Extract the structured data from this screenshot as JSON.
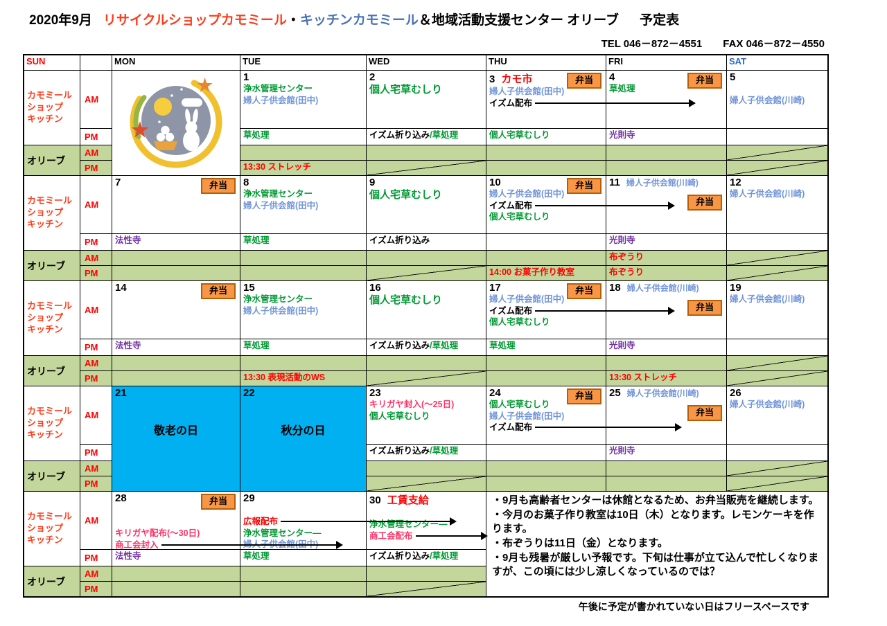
{
  "title": {
    "year_month": "2020年9月",
    "shop": "リサイクルショップカモミール",
    "dot": "・",
    "kitchen": "キッチンカモミール",
    "rest": "＆地域活動支援センター オリーブ",
    "suffix": "予定表"
  },
  "contact": "TEL 046－872－4551　　FAX 046－872－4550",
  "weekday_header": [
    "SUN",
    "",
    "MON",
    "TUE",
    "WED",
    "THU",
    "FRI",
    "SAT"
  ],
  "row_labels": {
    "shop": [
      "カモミール",
      "ショップ",
      "キッチン"
    ],
    "olive": "オリーブ",
    "am": "AM",
    "pm": "PM"
  },
  "bento_label": "弁当",
  "footnote": "午後に予定が書かれていない日はフリースペースです",
  "notes": [
    "・9月も高齢者センターは休館となるため、お弁当販売を継続します。",
    "・今月のお菓子作り教室は10日（木）となります。レモンケーキを作ります。",
    "・布ぞうりは11日（金）となります。",
    "・9月も残暑が厳しい予報です。下旬は仕事が立て込んで忙しくなりますが、この頃には少し涼しくなっているのでは？"
  ],
  "colors": {
    "event_red": "#ff0000",
    "event_green": "#009933",
    "event_blue": "#7094d9",
    "event_purple": "#7030a0",
    "event_pink": "#ff3366",
    "olive_row_bg": "#c3d69b",
    "holiday_blue": "#00b0f0",
    "bento_orange": "#f79646",
    "bento_border": "#b45f06",
    "shop_label_red": "#ff3c1a",
    "kitchen_title_blue": "#4a72b8",
    "sat_header_blue": "#2b6bc4"
  },
  "weeks": [
    {
      "days": [
        {
          "type": "image"
        },
        {
          "type": "day",
          "day": "1",
          "am": [
            {
              "segs": [
                {
                  "t": "浄水管理センター",
                  "c": "green"
                }
              ]
            },
            {
              "segs": [
                {
                  "t": "婦人子供会館(田中)",
                  "c": "blue"
                }
              ]
            }
          ],
          "pm": [
            {
              "segs": [
                {
                  "t": "草処理",
                  "c": "green"
                }
              ]
            }
          ],
          "opm": [
            {
              "segs": [
                {
                  "t": "13:30 ストレッチ",
                  "c": "red"
                }
              ]
            }
          ]
        },
        {
          "type": "day",
          "day": "2",
          "am": [
            {
              "big": true,
              "segs": [
                {
                  "t": "個人宅草むしり",
                  "c": "green"
                }
              ]
            }
          ],
          "pm": [
            {
              "segs": [
                {
                  "t": "イズム折り込み",
                  "c": "black"
                },
                {
                  "t": "/草処理",
                  "c": "green"
                }
              ]
            }
          ],
          "slash_opm": true
        },
        {
          "type": "day",
          "day": "3",
          "label": {
            "t": "カモ市",
            "c": "red"
          },
          "bento": true,
          "am": [
            {
              "segs": [
                {
                  "t": "婦人子供会館(田中)",
                  "c": "blue"
                }
              ]
            },
            {
              "segs": [
                {
                  "t": "イズム配布",
                  "c": "black"
                }
              ],
              "arrow": 230
            }
          ],
          "pm": [
            {
              "segs": [
                {
                  "t": "個人宅草むしり",
                  "c": "green"
                }
              ]
            }
          ]
        },
        {
          "type": "day",
          "day": "4",
          "bento": true,
          "am": [
            {
              "segs": [
                {
                  "t": "草処理",
                  "c": "green"
                }
              ]
            }
          ],
          "pm": [
            {
              "segs": [
                {
                  "t": "光則寺",
                  "c": "purple"
                }
              ]
            }
          ]
        },
        {
          "type": "day",
          "day": "5",
          "am": [
            {
              "gap": true
            },
            {
              "segs": [
                {
                  "t": "婦人子供会館(川崎)",
                  "c": "blue"
                }
              ]
            }
          ],
          "slash_oam": true,
          "slash_opm": true
        }
      ]
    },
    {
      "days": [
        {
          "type": "day",
          "day": "7",
          "bento": true,
          "pm": [
            {
              "segs": [
                {
                  "t": "法性寺",
                  "c": "purple"
                }
              ]
            }
          ]
        },
        {
          "type": "day",
          "day": "8",
          "am": [
            {
              "segs": [
                {
                  "t": "浄水管理センター",
                  "c": "green"
                }
              ]
            },
            {
              "segs": [
                {
                  "t": "婦人子供会館(田中)",
                  "c": "blue"
                }
              ]
            }
          ],
          "pm": [
            {
              "segs": [
                {
                  "t": "草処理",
                  "c": "green"
                }
              ]
            }
          ]
        },
        {
          "type": "day",
          "day": "9",
          "am": [
            {
              "big": true,
              "segs": [
                {
                  "t": "個人宅草むしり",
                  "c": "green"
                }
              ]
            }
          ],
          "pm": [
            {
              "segs": [
                {
                  "t": "イズム折り込み",
                  "c": "black"
                }
              ]
            }
          ],
          "slash_opm": true
        },
        {
          "type": "day",
          "day": "10",
          "bento": true,
          "am": [
            {
              "segs": [
                {
                  "t": "婦人子供会館(田中)",
                  "c": "blue"
                }
              ]
            },
            {
              "segs": [
                {
                  "t": "イズム配布",
                  "c": "black"
                }
              ],
              "arrow": 200
            },
            {
              "segs": [
                {
                  "t": "個人宅草むしり",
                  "c": "green"
                }
              ]
            }
          ],
          "opm": [
            {
              "segs": [
                {
                  "t": "14:00 お菓子作り教室",
                  "c": "red"
                }
              ]
            }
          ]
        },
        {
          "type": "day",
          "day": "11",
          "side": {
            "t": "婦人子供会館(川崎)",
            "c": "blue"
          },
          "bento": true,
          "bento_low": true,
          "pm": [
            {
              "segs": [
                {
                  "t": "光則寺",
                  "c": "purple"
                }
              ]
            }
          ],
          "oam": [
            {
              "segs": [
                {
                  "t": "布ぞうり",
                  "c": "red"
                }
              ]
            }
          ],
          "opm": [
            {
              "segs": [
                {
                  "t": "布ぞうり",
                  "c": "red"
                }
              ]
            }
          ]
        },
        {
          "type": "day",
          "day": "12",
          "am": [
            {
              "segs": [
                {
                  "t": "婦人子供会館(川崎)",
                  "c": "blue"
                }
              ]
            }
          ],
          "slash_oam": true,
          "slash_opm": true
        }
      ]
    },
    {
      "days": [
        {
          "type": "day",
          "day": "14",
          "bento": true,
          "pm": [
            {
              "segs": [
                {
                  "t": "法性寺",
                  "c": "purple"
                }
              ]
            }
          ]
        },
        {
          "type": "day",
          "day": "15",
          "am": [
            {
              "segs": [
                {
                  "t": "浄水管理センター",
                  "c": "green"
                }
              ]
            },
            {
              "segs": [
                {
                  "t": "婦人子供会館(田中)",
                  "c": "blue"
                }
              ]
            }
          ],
          "pm": [
            {
              "segs": [
                {
                  "t": "草処理",
                  "c": "green"
                }
              ]
            }
          ],
          "opm": [
            {
              "segs": [
                {
                  "t": "13:30 表現活動のWS",
                  "c": "red"
                }
              ]
            }
          ]
        },
        {
          "type": "day",
          "day": "16",
          "am": [
            {
              "big": true,
              "segs": [
                {
                  "t": "個人宅草むしり",
                  "c": "green"
                }
              ]
            }
          ],
          "pm": [
            {
              "segs": [
                {
                  "t": "イズム折り込み",
                  "c": "black"
                },
                {
                  "t": "/草処理",
                  "c": "green"
                }
              ]
            }
          ],
          "slash_opm": true
        },
        {
          "type": "day",
          "day": "17",
          "bento": true,
          "am": [
            {
              "segs": [
                {
                  "t": "婦人子供会館(田中)",
                  "c": "blue"
                }
              ]
            },
            {
              "segs": [
                {
                  "t": "イズム配布",
                  "c": "black"
                }
              ],
              "arrow": 200
            },
            {
              "segs": [
                {
                  "t": "個人宅草むしり",
                  "c": "green"
                }
              ]
            }
          ],
          "pm": [
            {
              "segs": [
                {
                  "t": "草処理",
                  "c": "green"
                }
              ]
            }
          ]
        },
        {
          "type": "day",
          "day": "18",
          "side": {
            "t": "婦人子供会館(川崎)",
            "c": "blue"
          },
          "bento": true,
          "bento_low": true,
          "pm": [
            {
              "segs": [
                {
                  "t": "光則寺",
                  "c": "purple"
                }
              ]
            }
          ],
          "opm": [
            {
              "segs": [
                {
                  "t": "13:30 ストレッチ",
                  "c": "red"
                }
              ]
            }
          ]
        },
        {
          "type": "day",
          "day": "19",
          "am": [
            {
              "segs": [
                {
                  "t": "婦人子供会館(川崎)",
                  "c": "blue"
                }
              ]
            }
          ],
          "slash_oam": true,
          "slash_opm": true
        }
      ]
    },
    {
      "days": [
        {
          "type": "holiday",
          "day": "21",
          "name": "敬老の日"
        },
        {
          "type": "holiday",
          "day": "22",
          "name": "秋分の日"
        },
        {
          "type": "day",
          "day": "23",
          "am": [
            {
              "segs": [
                {
                  "t": "キリガヤ封入(～25日)",
                  "c": "pink"
                }
              ]
            },
            {
              "segs": [
                {
                  "t": "個人宅草むしり",
                  "c": "green"
                }
              ]
            }
          ],
          "pm": [
            {
              "segs": [
                {
                  "t": "イズム折り込み",
                  "c": "black"
                },
                {
                  "t": "/草処理",
                  "c": "green"
                }
              ]
            }
          ],
          "slash_opm": true
        },
        {
          "type": "day",
          "day": "24",
          "bento": true,
          "am": [
            {
              "segs": [
                {
                  "t": "個人宅草むしり",
                  "c": "green"
                }
              ]
            },
            {
              "segs": [
                {
                  "t": "婦人子供会館(田中)",
                  "c": "blue"
                }
              ]
            },
            {
              "segs": [
                {
                  "t": "イズム配布",
                  "c": "black"
                }
              ],
              "arrow": 210
            }
          ]
        },
        {
          "type": "day",
          "day": "25",
          "side": {
            "t": "婦人子供会館(川崎)",
            "c": "blue"
          },
          "bento": true,
          "bento_low": true,
          "pm": [
            {
              "segs": [
                {
                  "t": "光則寺",
                  "c": "purple"
                }
              ]
            }
          ]
        },
        {
          "type": "day",
          "day": "26",
          "am": [
            {
              "segs": [
                {
                  "t": "婦人子供会館(川崎)",
                  "c": "blue"
                }
              ]
            }
          ],
          "slash_oam": true,
          "slash_opm": true
        }
      ]
    },
    {
      "days": [
        {
          "type": "day",
          "day": "28",
          "bento": true,
          "am": [
            {
              "gap": true
            },
            {
              "gap": true
            },
            {
              "segs": [
                {
                  "t": "キリガヤ配布(～30日)",
                  "c": "pink"
                }
              ]
            },
            {
              "segs": [
                {
                  "t": "商工会封入",
                  "c": "pink"
                }
              ],
              "arrow": 260
            }
          ],
          "pm": [
            {
              "segs": [
                {
                  "t": "法性寺",
                  "c": "purple"
                }
              ]
            }
          ]
        },
        {
          "type": "day",
          "day": "29",
          "am": [
            {
              "gap": true
            },
            {
              "segs": [
                {
                  "t": "広報配布",
                  "c": "red"
                }
              ],
              "arrow": 252
            },
            {
              "segs": [
                {
                  "t": "浄水管理センター―",
                  "c": "green"
                }
              ]
            },
            {
              "segs": [
                {
                  "t": "婦人子供会館(田中)",
                  "c": "blue"
                }
              ]
            }
          ],
          "pm": [
            {
              "segs": [
                {
                  "t": "草処理",
                  "c": "green"
                }
              ]
            }
          ]
        },
        {
          "type": "day",
          "day": "30",
          "label": {
            "t": "工賃支給",
            "c": "red"
          },
          "am": [
            {
              "gap": true
            },
            {
              "segs": [
                {
                  "t": "浄水管理センター―",
                  "c": "green"
                }
              ]
            },
            {
              "segs": [
                {
                  "t": "商工会配布",
                  "c": "pink"
                }
              ],
              "arrow": 102
            }
          ],
          "pm": [
            {
              "segs": [
                {
                  "t": "イズム折り込み",
                  "c": "black"
                },
                {
                  "t": "/草処理",
                  "c": "green"
                }
              ]
            }
          ],
          "slash_opm": true
        },
        {
          "type": "notes"
        },
        {
          "type": "skip"
        },
        {
          "type": "skip"
        }
      ]
    }
  ]
}
